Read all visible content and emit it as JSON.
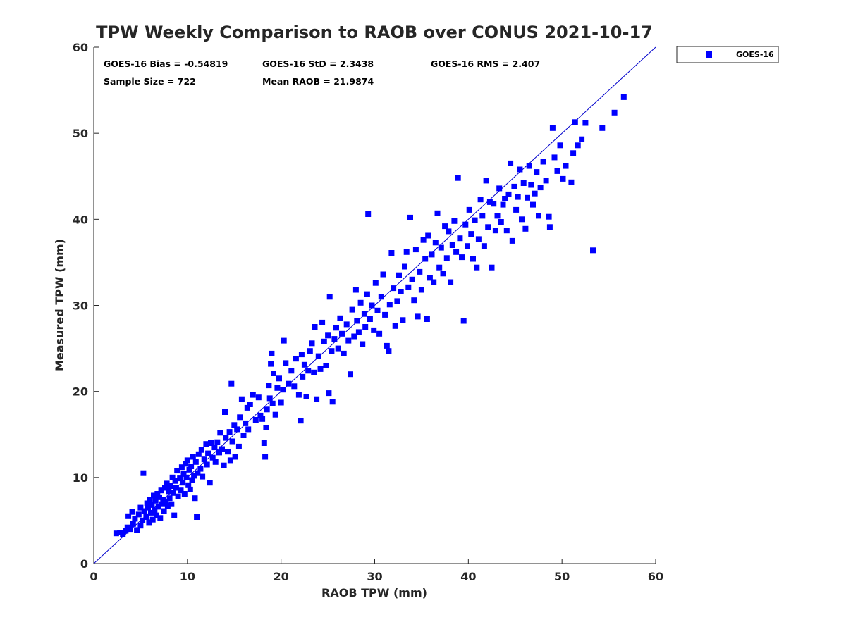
{
  "chart_data": {
    "type": "scatter",
    "title": "TPW Weekly Comparison to RAOB over CONUS 2021-10-17",
    "xlabel": "RAOB TPW (mm)",
    "ylabel": "Measured TPW (mm)",
    "xlim": [
      0,
      60
    ],
    "ylim": [
      0,
      60
    ],
    "xticks": [
      "0",
      "10",
      "20",
      "30",
      "40",
      "50",
      "60"
    ],
    "yticks": [
      "0",
      "10",
      "20",
      "30",
      "40",
      "50",
      "60"
    ],
    "grid": false,
    "legend_position": "outside-top-right",
    "stats": {
      "bias": "GOES-16 Bias = -0.54819",
      "std": "GOES-16 StD = 2.3438",
      "rms": "GOES-16 RMS = 2.407",
      "sample_size": "Sample Size = 722",
      "mean_raob": "Mean RAOB = 21.9874"
    },
    "reference_line": {
      "name": "1:1 line",
      "from": [
        0,
        0
      ],
      "to": [
        60,
        60
      ],
      "color": "#0000cc"
    },
    "series": [
      {
        "name": "GOES-16",
        "color": "#0000ff",
        "marker": "square",
        "points": [
          [
            2.4,
            3.5
          ],
          [
            2.8,
            3.6
          ],
          [
            3.1,
            3.4
          ],
          [
            3.4,
            3.8
          ],
          [
            3.6,
            4.2
          ],
          [
            3.7,
            5.5
          ],
          [
            3.9,
            4.0
          ],
          [
            4.1,
            6.0
          ],
          [
            4.2,
            4.6
          ],
          [
            4.4,
            5.2
          ],
          [
            4.6,
            3.9
          ],
          [
            4.8,
            5.7
          ],
          [
            5.0,
            4.4
          ],
          [
            5.0,
            6.5
          ],
          [
            5.2,
            5.0
          ],
          [
            5.3,
            10.5
          ],
          [
            5.4,
            6.1
          ],
          [
            5.6,
            5.4
          ],
          [
            5.7,
            7.0
          ],
          [
            5.8,
            6.5
          ],
          [
            5.9,
            4.8
          ],
          [
            6.0,
            7.4
          ],
          [
            6.1,
            5.9
          ],
          [
            6.2,
            6.8
          ],
          [
            6.3,
            5.1
          ],
          [
            6.4,
            7.9
          ],
          [
            6.5,
            6.2
          ],
          [
            6.6,
            7.3
          ],
          [
            6.7,
            5.6
          ],
          [
            6.8,
            8.1
          ],
          [
            6.9,
            6.6
          ],
          [
            7.0,
            7.7
          ],
          [
            7.1,
            5.3
          ],
          [
            7.2,
            8.5
          ],
          [
            7.3,
            6.9
          ],
          [
            7.4,
            7.4
          ],
          [
            7.5,
            6.1
          ],
          [
            7.6,
            8.8
          ],
          [
            7.7,
            7.2
          ],
          [
            7.8,
            9.3
          ],
          [
            7.9,
            6.7
          ],
          [
            8.0,
            8.4
          ],
          [
            8.1,
            7.6
          ],
          [
            8.2,
            9.0
          ],
          [
            8.3,
            6.9
          ],
          [
            8.4,
            10.0
          ],
          [
            8.5,
            8.2
          ],
          [
            8.6,
            5.6
          ],
          [
            8.7,
            9.6
          ],
          [
            8.8,
            8.8
          ],
          [
            8.9,
            10.8
          ],
          [
            9.0,
            7.8
          ],
          [
            9.2,
            9.9
          ],
          [
            9.3,
            8.5
          ],
          [
            9.4,
            11.2
          ],
          [
            9.5,
            9.4
          ],
          [
            9.6,
            10.4
          ],
          [
            9.7,
            8.1
          ],
          [
            9.8,
            11.6
          ],
          [
            9.9,
            10.0
          ],
          [
            10.0,
            12.0
          ],
          [
            10.1,
            9.1
          ],
          [
            10.2,
            10.9
          ],
          [
            10.3,
            8.6
          ],
          [
            10.4,
            11.3
          ],
          [
            10.5,
            9.7
          ],
          [
            10.6,
            12.4
          ],
          [
            10.7,
            10.2
          ],
          [
            10.8,
            7.6
          ],
          [
            10.9,
            11.8
          ],
          [
            11.0,
            5.4
          ],
          [
            11.1,
            10.5
          ],
          [
            11.2,
            12.7
          ],
          [
            11.4,
            11.0
          ],
          [
            11.5,
            13.2
          ],
          [
            11.6,
            10.1
          ],
          [
            11.8,
            12.1
          ],
          [
            12.0,
            13.9
          ],
          [
            12.1,
            11.5
          ],
          [
            12.2,
            12.8
          ],
          [
            12.4,
            9.4
          ],
          [
            12.5,
            14.0
          ],
          [
            12.7,
            12.3
          ],
          [
            12.9,
            13.5
          ],
          [
            13.0,
            11.8
          ],
          [
            13.2,
            14.1
          ],
          [
            13.4,
            12.9
          ],
          [
            13.5,
            15.2
          ],
          [
            13.7,
            13.3
          ],
          [
            13.9,
            11.4
          ],
          [
            14.0,
            17.6
          ],
          [
            14.1,
            14.6
          ],
          [
            14.3,
            13.0
          ],
          [
            14.5,
            15.3
          ],
          [
            14.6,
            12.0
          ],
          [
            14.7,
            20.9
          ],
          [
            14.8,
            14.2
          ],
          [
            15.0,
            16.1
          ],
          [
            15.1,
            12.4
          ],
          [
            15.3,
            15.6
          ],
          [
            15.5,
            13.6
          ],
          [
            15.6,
            17.0
          ],
          [
            15.8,
            19.1
          ],
          [
            16.0,
            14.9
          ],
          [
            16.2,
            16.3
          ],
          [
            16.4,
            18.1
          ],
          [
            16.5,
            15.6
          ],
          [
            16.7,
            18.5
          ],
          [
            17.0,
            19.6
          ],
          [
            17.3,
            16.7
          ],
          [
            17.6,
            19.3
          ],
          [
            17.8,
            17.2
          ],
          [
            18.0,
            16.8
          ],
          [
            18.2,
            14.0
          ],
          [
            18.3,
            12.4
          ],
          [
            18.4,
            15.8
          ],
          [
            18.5,
            17.9
          ],
          [
            18.7,
            20.7
          ],
          [
            18.8,
            19.2
          ],
          [
            18.9,
            23.2
          ],
          [
            19.0,
            24.4
          ],
          [
            19.1,
            18.6
          ],
          [
            19.2,
            22.1
          ],
          [
            19.4,
            17.3
          ],
          [
            19.6,
            20.4
          ],
          [
            19.8,
            21.5
          ],
          [
            20.0,
            18.7
          ],
          [
            20.2,
            20.2
          ],
          [
            20.3,
            25.9
          ],
          [
            20.5,
            23.3
          ],
          [
            20.8,
            20.9
          ],
          [
            21.1,
            22.4
          ],
          [
            21.4,
            20.6
          ],
          [
            21.6,
            23.8
          ],
          [
            21.9,
            19.6
          ],
          [
            22.1,
            16.6
          ],
          [
            22.2,
            24.3
          ],
          [
            22.3,
            21.7
          ],
          [
            22.5,
            23.1
          ],
          [
            22.7,
            19.4
          ],
          [
            22.9,
            22.4
          ],
          [
            23.1,
            24.7
          ],
          [
            23.3,
            25.6
          ],
          [
            23.5,
            22.2
          ],
          [
            23.6,
            27.5
          ],
          [
            23.8,
            19.1
          ],
          [
            24.0,
            24.1
          ],
          [
            24.2,
            22.6
          ],
          [
            24.4,
            28.0
          ],
          [
            24.6,
            25.8
          ],
          [
            24.8,
            23.0
          ],
          [
            25.0,
            26.5
          ],
          [
            25.1,
            19.8
          ],
          [
            25.2,
            31.0
          ],
          [
            25.4,
            24.7
          ],
          [
            25.5,
            18.8
          ],
          [
            25.7,
            26.1
          ],
          [
            25.9,
            27.4
          ],
          [
            26.1,
            25.0
          ],
          [
            26.3,
            28.5
          ],
          [
            26.5,
            26.7
          ],
          [
            26.7,
            24.4
          ],
          [
            27.0,
            27.8
          ],
          [
            27.2,
            25.9
          ],
          [
            27.4,
            22.0
          ],
          [
            27.6,
            29.5
          ],
          [
            27.8,
            26.4
          ],
          [
            28.0,
            31.8
          ],
          [
            28.1,
            28.2
          ],
          [
            28.3,
            26.9
          ],
          [
            28.5,
            30.3
          ],
          [
            28.7,
            25.5
          ],
          [
            28.9,
            29.0
          ],
          [
            29.0,
            27.5
          ],
          [
            29.2,
            31.3
          ],
          [
            29.3,
            40.6
          ],
          [
            29.5,
            28.4
          ],
          [
            29.7,
            30.0
          ],
          [
            29.9,
            27.1
          ],
          [
            30.1,
            32.6
          ],
          [
            30.3,
            29.4
          ],
          [
            30.5,
            26.7
          ],
          [
            30.7,
            31.0
          ],
          [
            30.9,
            33.6
          ],
          [
            31.1,
            28.9
          ],
          [
            31.3,
            25.3
          ],
          [
            31.5,
            24.7
          ],
          [
            31.6,
            30.1
          ],
          [
            31.8,
            36.1
          ],
          [
            32.0,
            32.0
          ],
          [
            32.2,
            27.6
          ],
          [
            32.4,
            30.5
          ],
          [
            32.6,
            33.5
          ],
          [
            32.8,
            31.6
          ],
          [
            33.0,
            28.3
          ],
          [
            33.2,
            34.5
          ],
          [
            33.4,
            36.2
          ],
          [
            33.6,
            32.1
          ],
          [
            33.8,
            40.2
          ],
          [
            34.0,
            33.0
          ],
          [
            34.2,
            30.6
          ],
          [
            34.4,
            36.5
          ],
          [
            34.6,
            28.7
          ],
          [
            34.8,
            33.9
          ],
          [
            35.0,
            31.8
          ],
          [
            35.2,
            37.6
          ],
          [
            35.4,
            35.4
          ],
          [
            35.6,
            28.4
          ],
          [
            35.7,
            38.1
          ],
          [
            35.9,
            33.2
          ],
          [
            36.1,
            35.9
          ],
          [
            36.3,
            32.7
          ],
          [
            36.5,
            37.3
          ],
          [
            36.7,
            40.7
          ],
          [
            36.9,
            34.4
          ],
          [
            37.1,
            36.7
          ],
          [
            37.3,
            33.7
          ],
          [
            37.5,
            39.2
          ],
          [
            37.7,
            35.5
          ],
          [
            37.9,
            38.6
          ],
          [
            38.1,
            32.7
          ],
          [
            38.3,
            37.0
          ],
          [
            38.5,
            39.8
          ],
          [
            38.7,
            36.2
          ],
          [
            38.9,
            44.8
          ],
          [
            39.1,
            37.8
          ],
          [
            39.3,
            35.6
          ],
          [
            39.5,
            28.2
          ],
          [
            39.7,
            39.4
          ],
          [
            39.9,
            36.9
          ],
          [
            40.1,
            41.1
          ],
          [
            40.3,
            38.3
          ],
          [
            40.5,
            35.4
          ],
          [
            40.7,
            39.9
          ],
          [
            40.9,
            34.4
          ],
          [
            41.1,
            37.7
          ],
          [
            41.3,
            42.3
          ],
          [
            41.5,
            40.4
          ],
          [
            41.7,
            36.9
          ],
          [
            41.9,
            44.5
          ],
          [
            42.1,
            39.1
          ],
          [
            42.3,
            42.0
          ],
          [
            42.5,
            34.4
          ],
          [
            42.7,
            41.8
          ],
          [
            42.9,
            38.7
          ],
          [
            43.1,
            40.4
          ],
          [
            43.3,
            43.6
          ],
          [
            43.5,
            39.7
          ],
          [
            43.7,
            41.7
          ],
          [
            43.9,
            42.4
          ],
          [
            44.1,
            38.7
          ],
          [
            44.3,
            42.9
          ],
          [
            44.5,
            46.5
          ],
          [
            44.7,
            37.5
          ],
          [
            44.9,
            43.8
          ],
          [
            45.1,
            41.1
          ],
          [
            45.3,
            42.6
          ],
          [
            45.5,
            45.8
          ],
          [
            45.7,
            40.0
          ],
          [
            45.9,
            44.2
          ],
          [
            46.1,
            38.9
          ],
          [
            46.3,
            42.5
          ],
          [
            46.5,
            46.2
          ],
          [
            46.7,
            44.0
          ],
          [
            46.9,
            41.7
          ],
          [
            47.1,
            43.0
          ],
          [
            47.3,
            45.5
          ],
          [
            47.5,
            40.4
          ],
          [
            47.7,
            43.7
          ],
          [
            48.0,
            46.7
          ],
          [
            48.3,
            44.5
          ],
          [
            48.6,
            40.3
          ],
          [
            48.7,
            39.1
          ],
          [
            49.0,
            50.6
          ],
          [
            49.2,
            47.2
          ],
          [
            49.5,
            45.6
          ],
          [
            49.8,
            48.6
          ],
          [
            50.1,
            44.7
          ],
          [
            50.4,
            46.2
          ],
          [
            51.0,
            44.3
          ],
          [
            51.2,
            47.7
          ],
          [
            51.4,
            51.3
          ],
          [
            51.7,
            48.6
          ],
          [
            52.1,
            49.3
          ],
          [
            52.5,
            51.2
          ],
          [
            53.3,
            36.4
          ],
          [
            54.3,
            50.6
          ],
          [
            55.6,
            52.4
          ],
          [
            56.6,
            54.2
          ]
        ]
      }
    ]
  }
}
